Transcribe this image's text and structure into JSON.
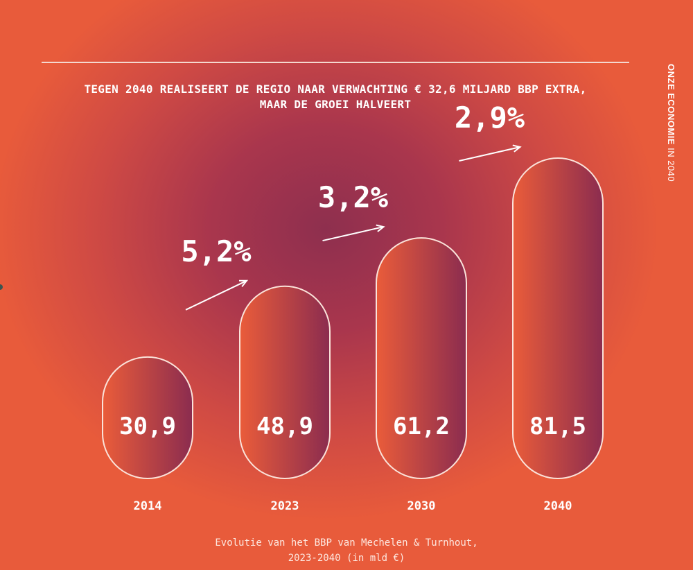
{
  "title_lines": [
    "TEGEN 2040 REALISEERT DE REGIO NAAR VERWACHTING € 32,6 MILJARD BBP EXTRA,",
    "MAAR DE GROEI HALVEERT"
  ],
  "side_label": {
    "bold": "ONZE ECONOMIE",
    "regular": " IN 2040"
  },
  "caption_lines": [
    "Evolutie van het BBP van Mechelen & Turnhout,",
    "2023-2040 (in mld €)"
  ],
  "colors": {
    "pill_light": "#ea5c3a",
    "pill_dark": "#8b2c4f",
    "outline": "#fbe3da",
    "text": "#ffffff"
  },
  "chart_data": {
    "type": "bar",
    "categories": [
      "2014",
      "2023",
      "2030",
      "2040"
    ],
    "values": [
      30.9,
      48.9,
      61.2,
      81.5
    ],
    "value_labels": [
      "30,9",
      "48,9",
      "61,2",
      "81,5"
    ],
    "growth_labels": [
      "5,2%",
      "3,2%",
      "2,9%"
    ],
    "ylim": [
      0,
      81.5
    ],
    "grid": false,
    "legend": "none"
  }
}
